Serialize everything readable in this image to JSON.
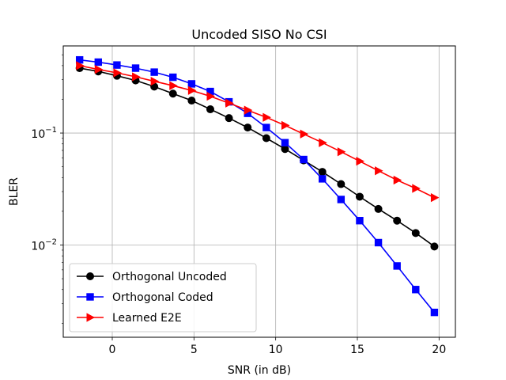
{
  "chart_data": {
    "type": "line",
    "title": "Uncoded SISO No CSI",
    "xlabel": "SNR (in dB)",
    "ylabel": "BLER",
    "xlim": [
      -3,
      21
    ],
    "ylim": [
      0.0015,
      0.6
    ],
    "yscale": "log",
    "grid": true,
    "legend_position": "lower-left",
    "x_ticks": [
      0,
      5,
      10,
      15,
      20
    ],
    "x_tick_labels": [
      "0",
      "5",
      "10",
      "15",
      "20"
    ],
    "y_ticks": [
      0.01,
      0.1
    ],
    "y_tick_labels": [
      [
        "10",
        "−2"
      ],
      [
        "10",
        "−1"
      ]
    ],
    "x": [
      -2,
      -0.857,
      0.286,
      1.429,
      2.571,
      3.714,
      4.857,
      6.0,
      7.143,
      8.286,
      9.429,
      10.571,
      11.714,
      12.857,
      14.0,
      15.143,
      16.286,
      17.429,
      18.571,
      19.714
    ],
    "series": [
      {
        "name": "Orthogonal Uncoded",
        "color": "#000000",
        "marker": "circle",
        "values": [
          0.38,
          0.355,
          0.325,
          0.295,
          0.26,
          0.225,
          0.195,
          0.163,
          0.136,
          0.112,
          0.09,
          0.072,
          0.057,
          0.045,
          0.035,
          0.027,
          0.021,
          0.0165,
          0.0128,
          0.0097
        ]
      },
      {
        "name": "Orthogonal Coded",
        "color": "#0000ff",
        "marker": "square",
        "values": [
          0.45,
          0.43,
          0.405,
          0.38,
          0.35,
          0.315,
          0.275,
          0.235,
          0.19,
          0.15,
          0.112,
          0.082,
          0.058,
          0.039,
          0.0255,
          0.0165,
          0.0105,
          0.0065,
          0.004,
          0.0025
        ]
      },
      {
        "name": "Learned E2E",
        "color": "#ff0000",
        "marker": "triangle-right",
        "values": [
          0.4,
          0.37,
          0.345,
          0.318,
          0.29,
          0.265,
          0.24,
          0.213,
          0.185,
          0.16,
          0.138,
          0.117,
          0.098,
          0.082,
          0.068,
          0.056,
          0.046,
          0.038,
          0.032,
          0.0265
        ]
      }
    ]
  }
}
